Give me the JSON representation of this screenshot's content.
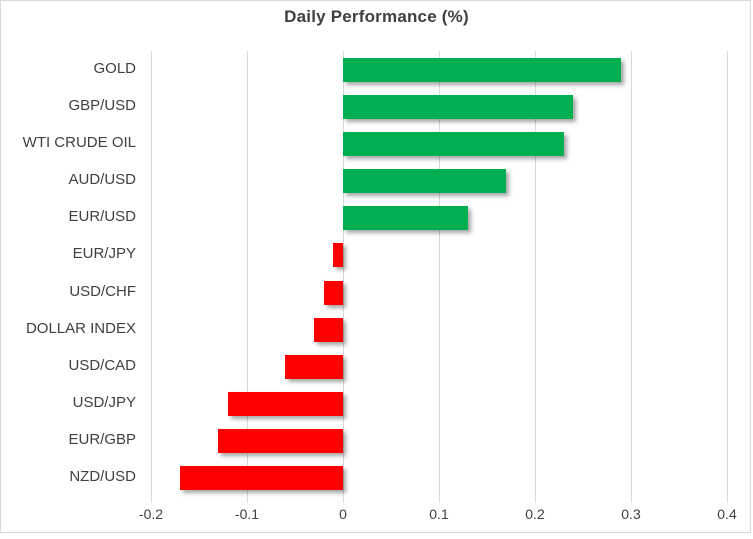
{
  "chart_data": {
    "type": "bar",
    "orientation": "horizontal",
    "title": "Daily Performance (%)",
    "categories": [
      "GOLD",
      "GBP/USD",
      "WTI CRUDE OIL",
      "AUD/USD",
      "EUR/USD",
      "EUR/JPY",
      "USD/CHF",
      "DOLLAR INDEX",
      "USD/CAD",
      "USD/JPY",
      "EUR/GBP",
      "NZD/USD"
    ],
    "values": [
      0.29,
      0.24,
      0.23,
      0.17,
      0.13,
      -0.01,
      -0.02,
      -0.03,
      -0.06,
      -0.12,
      -0.13,
      -0.17
    ],
    "x_tick_labels": [
      "-0.2",
      "-0.1",
      "0",
      "0.1",
      "0.2",
      "0.3",
      "0.4"
    ],
    "x_tick_values": [
      -0.2,
      -0.1,
      0,
      0.1,
      0.2,
      0.3,
      0.4
    ],
    "xlim": [
      -0.208,
      0.419
    ],
    "grid": true,
    "legend": "none",
    "xlabel": "",
    "ylabel": "",
    "colors": {
      "positive": "#00B050",
      "negative": "#FF0000",
      "gridline": "#D9D9D9",
      "text": "#404040",
      "title": "#3F3F3F",
      "frame_border": "#D9D9D9"
    }
  }
}
